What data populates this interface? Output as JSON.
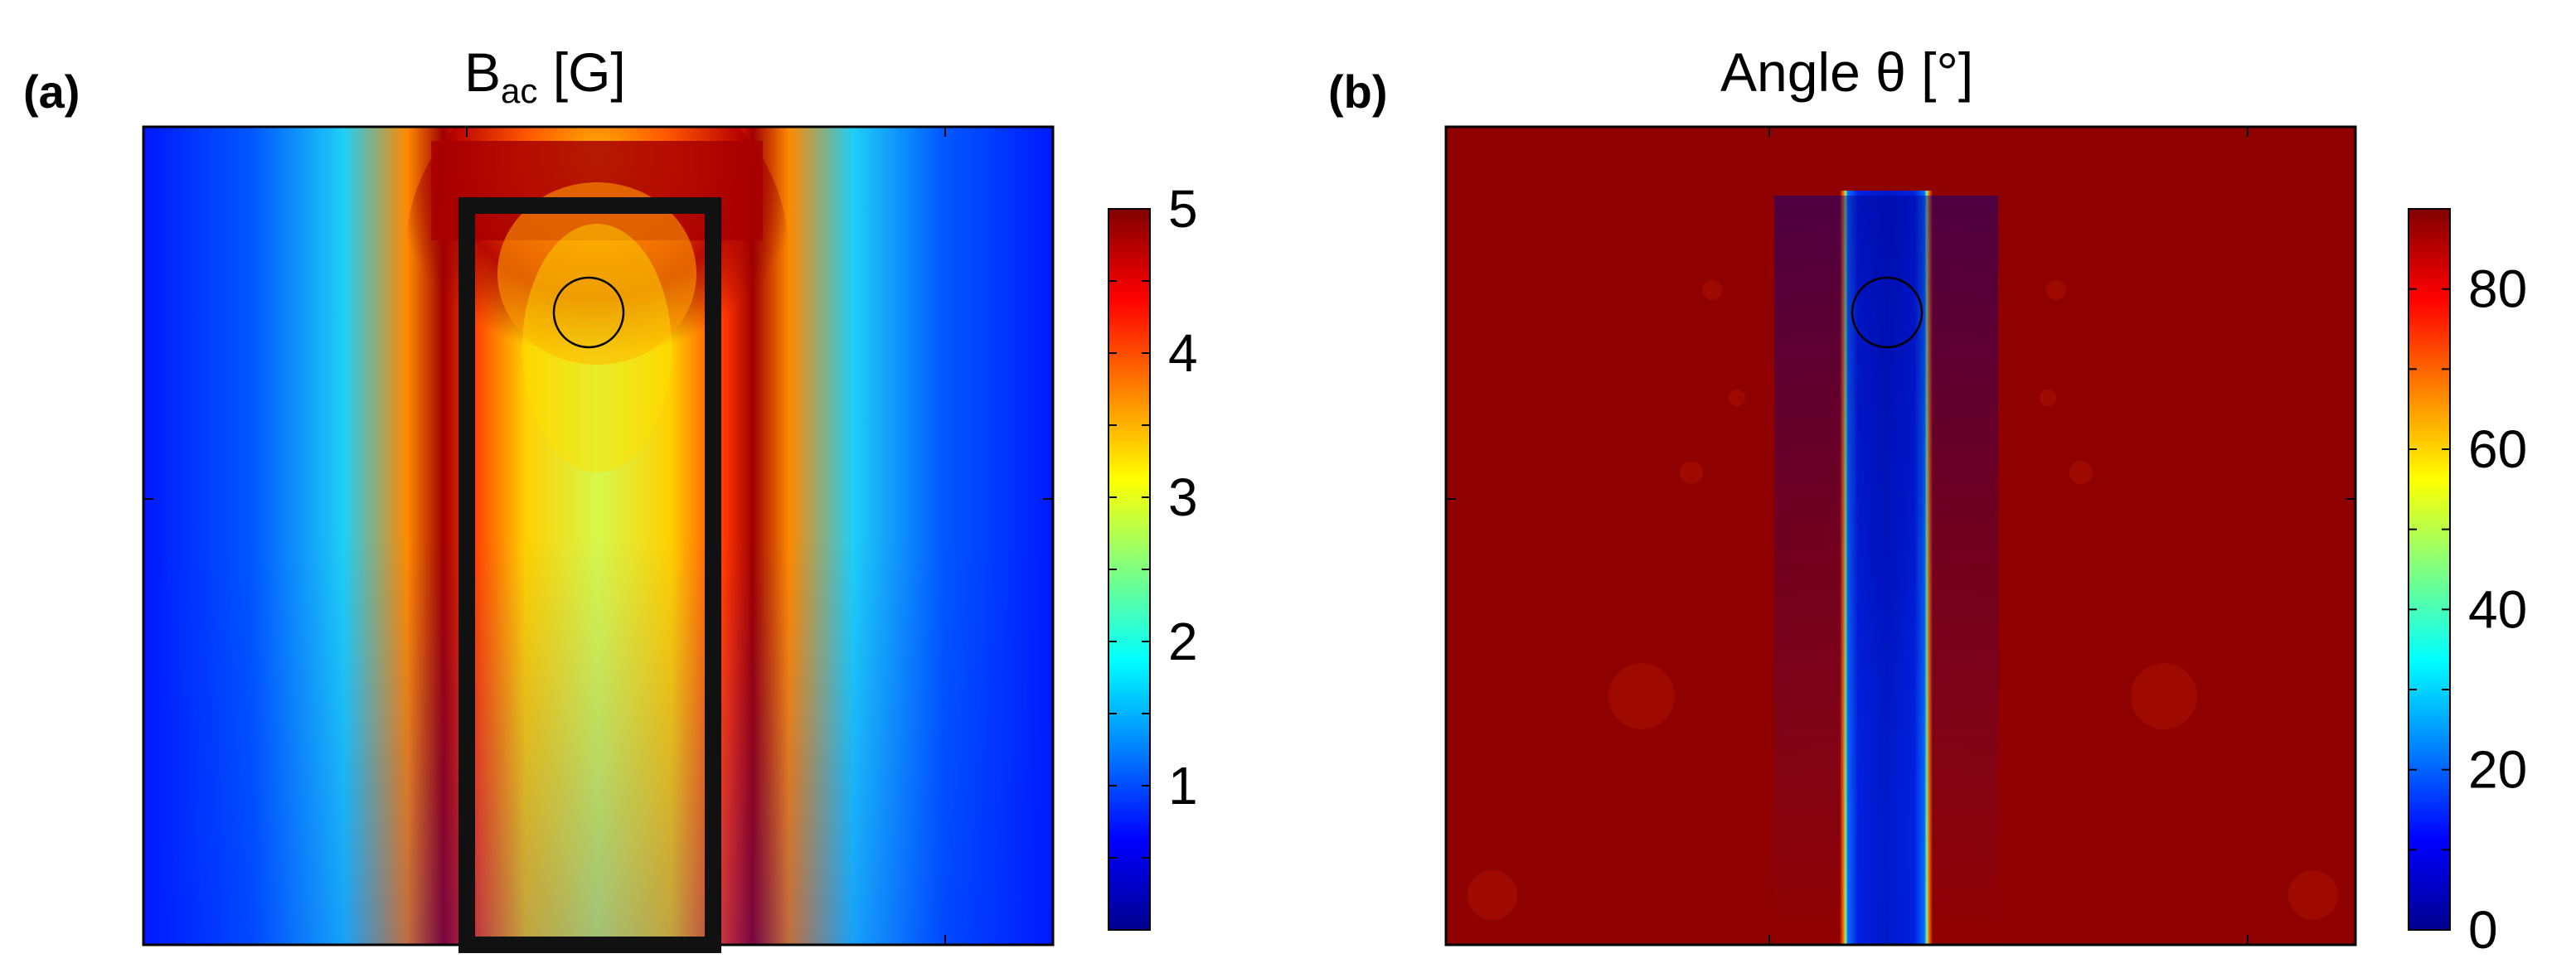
{
  "chart_data": [
    {
      "type": "heatmap",
      "panel_label": "(a)",
      "title_main": "B",
      "title_sub": "ac",
      "title_unit": " [G]",
      "colorbar": {
        "range": [
          0,
          5
        ],
        "ticks": [
          1,
          2,
          3,
          4,
          5
        ],
        "tick_labels": [
          "1",
          "2",
          "3",
          "4",
          "5"
        ]
      },
      "colormap": [
        "#00008f",
        "#0000ff",
        "#0080ff",
        "#00ffff",
        "#80ff80",
        "#ffff00",
        "#ff8000",
        "#ff0000",
        "#800000"
      ],
      "overlay": [
        "rectangle-outline",
        "circle"
      ]
    },
    {
      "type": "heatmap",
      "panel_label": "(b)",
      "title": "Angle θ [°]",
      "colorbar": {
        "range": [
          0,
          90
        ],
        "ticks": [
          0,
          20,
          40,
          60,
          80
        ],
        "tick_labels": [
          "0",
          "20",
          "40",
          "60",
          "80"
        ]
      },
      "colormap": [
        "#00008f",
        "#0000ff",
        "#0080ff",
        "#00ffff",
        "#80ff80",
        "#ffff00",
        "#ff8000",
        "#ff0000",
        "#800000"
      ],
      "overlay": [
        "circle"
      ]
    }
  ]
}
